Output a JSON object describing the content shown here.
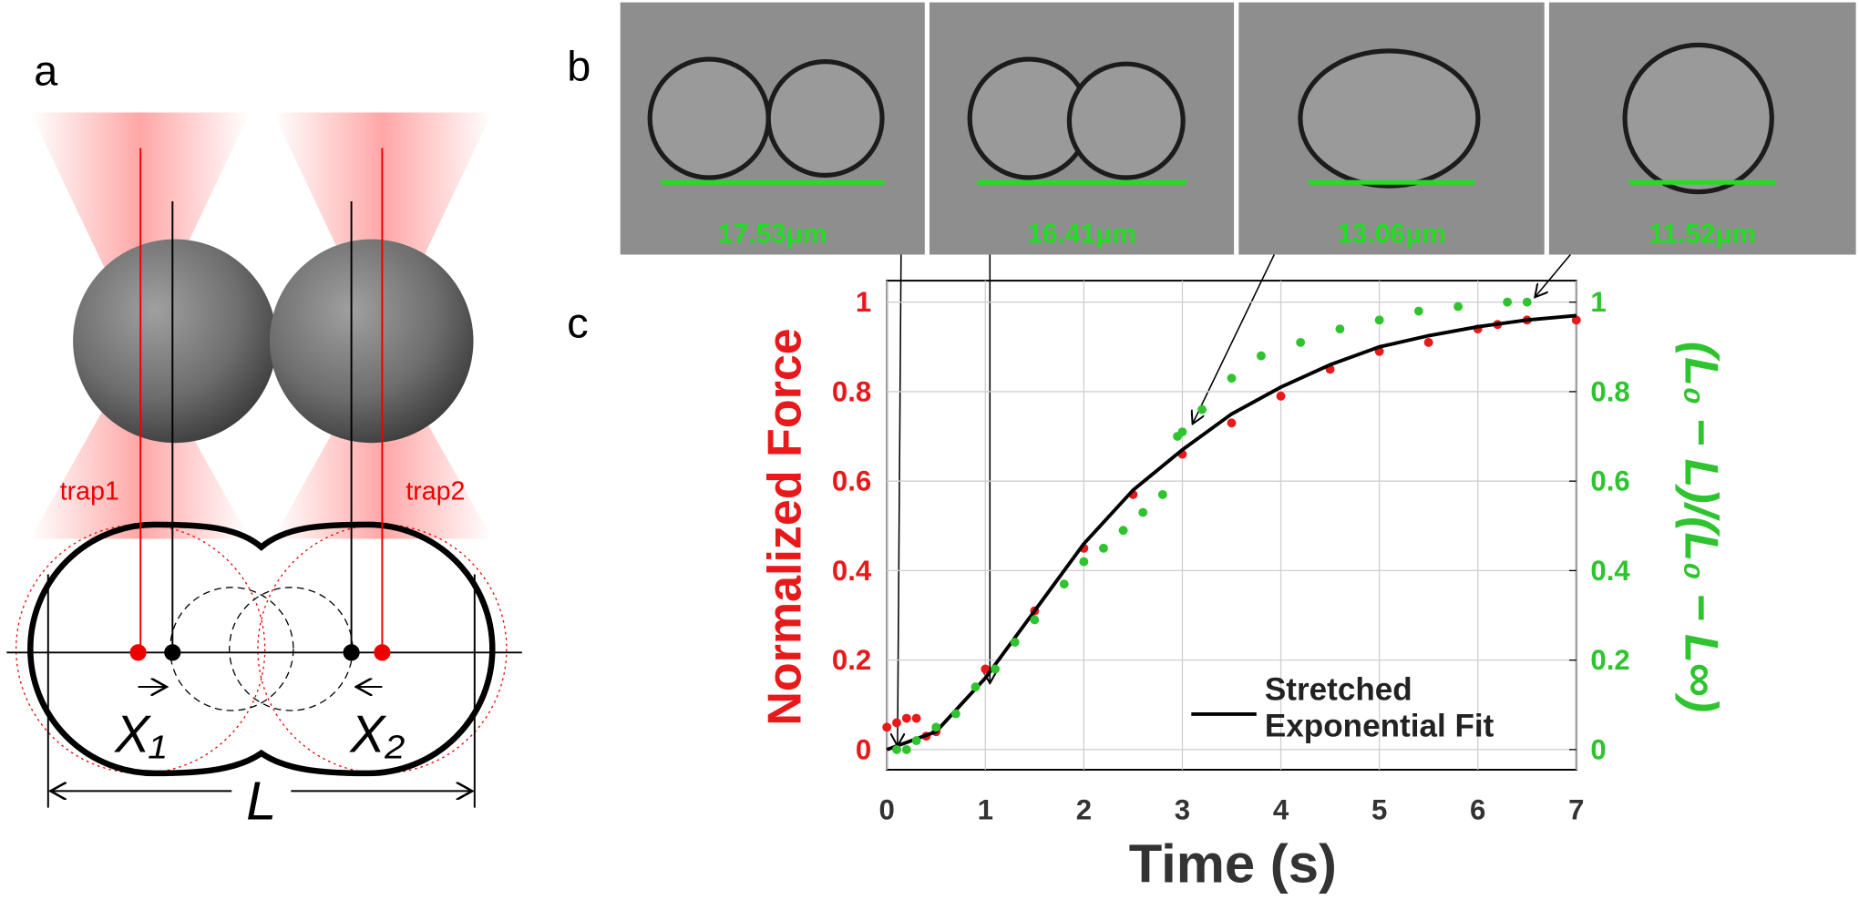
{
  "panel_labels": [
    "a",
    "b",
    "c"
  ],
  "panel_a": {
    "trap_labels": [
      "trap1",
      "trap2"
    ],
    "displacement_labels": [
      "X₁",
      "X₂"
    ],
    "length_label": "L"
  },
  "panel_b": {
    "values": [
      17.53,
      16.41,
      13.06,
      11.52
    ],
    "value_labels": [
      "17.53μm",
      "16.41μm",
      "13.06μm",
      "11.52μm"
    ],
    "color": "#22dd22"
  },
  "chart_data": {
    "type": "line",
    "xlabel": "Time (s)",
    "ylabel": "Normalized Force",
    "y2label": "(L₀ − L)/(L₀ − L∞)",
    "xlim": [
      0,
      7
    ],
    "ylim": [
      -0.045,
      1.048
    ],
    "y2lim": [
      -0.045,
      1.048
    ],
    "xticks": [
      0,
      1,
      2,
      3,
      4,
      5,
      6,
      7
    ],
    "yticks": [
      0,
      0.2,
      0.4,
      0.6,
      0.8,
      1
    ],
    "y2ticks": [
      0,
      0.2,
      0.4,
      0.6,
      0.8,
      1
    ],
    "grid": true,
    "legend": "lower right",
    "series": [
      {
        "color": "#e8191a",
        "style": "dots",
        "x": [
          0,
          0.1,
          0.2,
          0.3,
          0.4,
          0.5,
          1,
          1.5,
          2,
          2.5,
          3,
          3.5,
          4,
          4.5,
          5,
          5.5,
          6,
          6.2,
          6.5,
          7
        ],
        "values": [
          0.05,
          0.06,
          0.07,
          0.07,
          0.03,
          0.04,
          0.18,
          0.31,
          0.45,
          0.57,
          0.66,
          0.73,
          0.79,
          0.85,
          0.89,
          0.91,
          0.94,
          0.95,
          0.96,
          0.96
        ]
      },
      {
        "name": "Stretched Exponential Fit",
        "color": "#000000",
        "style": "line",
        "x": [
          0,
          0.5,
          1,
          1.5,
          2,
          2.5,
          3,
          3.5,
          4,
          4.5,
          5,
          5.5,
          6,
          6.5,
          7
        ],
        "values": [
          0,
          0.04,
          0.16,
          0.31,
          0.46,
          0.58,
          0.67,
          0.75,
          0.81,
          0.86,
          0.9,
          0.925,
          0.945,
          0.96,
          0.97
        ]
      },
      {
        "color": "#2fc42f",
        "style": "dots",
        "axis": "y2",
        "x": [
          0.1,
          0.2,
          0.3,
          0.5,
          0.7,
          0.9,
          1.1,
          1.3,
          1.5,
          1.8,
          2,
          2.2,
          2.4,
          2.6,
          2.8,
          2.95,
          3,
          3.2,
          3.5,
          3.8,
          4.2,
          4.6,
          5,
          5.4,
          5.8,
          6.3,
          6.5
        ],
        "values": [
          0,
          0,
          0.02,
          0.05,
          0.08,
          0.14,
          0.18,
          0.24,
          0.29,
          0.37,
          0.42,
          0.45,
          0.49,
          0.53,
          0.57,
          0.7,
          0.71,
          0.76,
          0.83,
          0.88,
          0.91,
          0.94,
          0.96,
          0.98,
          0.99,
          1,
          1
        ]
      }
    ]
  }
}
